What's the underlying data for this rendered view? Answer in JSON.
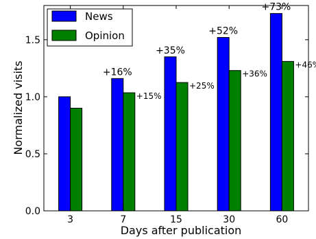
{
  "chart_data": {
    "type": "bar",
    "categories": [
      "3",
      "7",
      "15",
      "30",
      "60"
    ],
    "series": [
      {
        "name": "News",
        "color": "#0000ff",
        "values": [
          1.0,
          1.16,
          1.35,
          1.52,
          1.73
        ],
        "labels": [
          "",
          "+16%",
          "+35%",
          "+52%",
          "+73%"
        ]
      },
      {
        "name": "Opinion",
        "color": "#008000",
        "values": [
          0.9,
          1.035,
          1.125,
          1.23,
          1.31
        ],
        "labels": [
          "",
          "+15%",
          "+25%",
          "+36%",
          "+46%"
        ]
      }
    ],
    "xlabel": "Days after publication",
    "ylabel": "Normalized visits",
    "ylim": [
      0.0,
      1.8
    ],
    "yticks": [
      "0.0",
      "0.5",
      "1.0",
      "1.5"
    ],
    "ytick_values": [
      0.0,
      0.5,
      1.0,
      1.5
    ],
    "legend_position": "top-left",
    "grid": false
  }
}
